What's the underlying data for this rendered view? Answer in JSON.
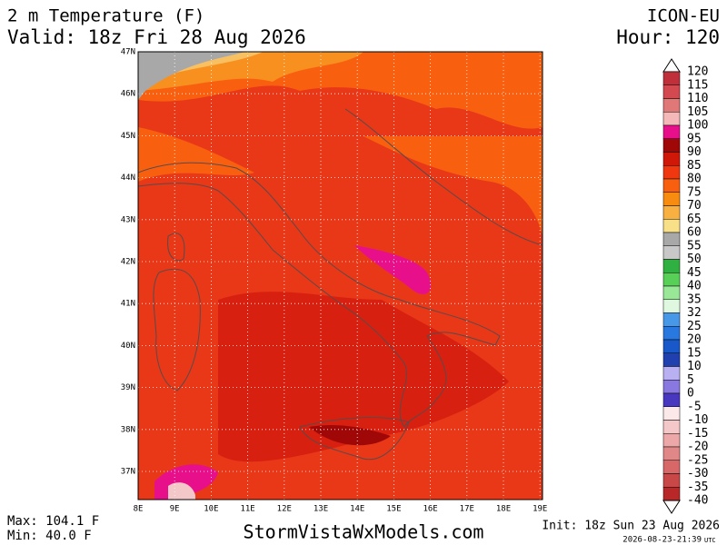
{
  "header": {
    "title": "2 m Temperature (F)",
    "valid": "Valid: 18z Fri 28 Aug 2026",
    "model": "ICON-EU",
    "hour": "Hour: 120"
  },
  "map": {
    "lat_labels": [
      "47N",
      "46N",
      "45N",
      "44N",
      "43N",
      "42N",
      "41N",
      "40N",
      "39N",
      "38N",
      "37N"
    ],
    "lon_labels": [
      "8E",
      "9E",
      "10E",
      "11E",
      "12E",
      "13E",
      "14E",
      "15E",
      "16E",
      "17E",
      "18E",
      "19E"
    ]
  },
  "colorbar": {
    "labels": [
      "120",
      "115",
      "110",
      "105",
      "100",
      "95",
      "90",
      "85",
      "80",
      "75",
      "70",
      "65",
      "60",
      "55",
      "50",
      "45",
      "40",
      "35",
      "32",
      "25",
      "20",
      "15",
      "10",
      "5",
      "0",
      "-5",
      "-10",
      "-15",
      "-20",
      "-25",
      "-30",
      "-35",
      "-40"
    ],
    "colors": [
      "#c0303a",
      "#d24a50",
      "#e07878",
      "#f4b8b8",
      "#e8108a",
      "#a00808",
      "#d01808",
      "#f03810",
      "#f86010",
      "#f88c10",
      "#f8b040",
      "#f8e088",
      "#a8a8a8",
      "#c8c8c8",
      "#30b040",
      "#58d058",
      "#98e898",
      "#e0f8e0",
      "#4898e8",
      "#2878e0",
      "#1858c8",
      "#2040b0",
      "#b8b0f0",
      "#8878e0",
      "#4838c0",
      "#fbe8e8",
      "#f4c8c8",
      "#eca8a8",
      "#e08888",
      "#d86868",
      "#c84848",
      "#b82828"
    ]
  },
  "footer": {
    "max": "Max: 104.1 F",
    "min": "Min: 40.0 F",
    "site": "StormVistaWxModels.com",
    "init": "Init: 18z Sun 23 Aug 2026",
    "stamp": "2026-08-23-21:39",
    "stamp_unit": "UTC"
  }
}
